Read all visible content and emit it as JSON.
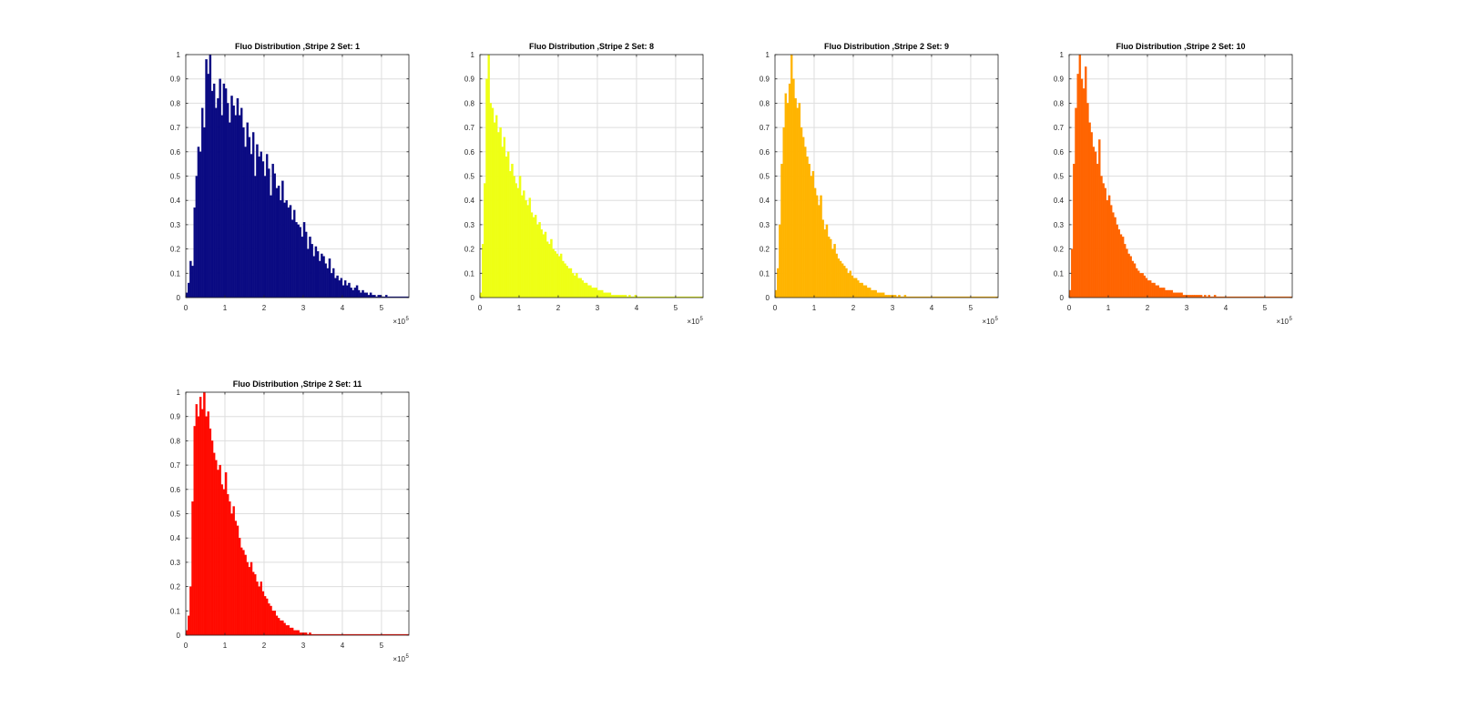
{
  "figure": {
    "background": "#ffffff",
    "axes_color": "#262626",
    "grid_color": "#dedede"
  },
  "chart_data": [
    {
      "type": "bar",
      "title": "Fluo Distribution ,Stripe 2 Set:  1",
      "color": "#0a0a82",
      "xlim": [
        0,
        570000
      ],
      "ylim": [
        0,
        1
      ],
      "xticks": [
        0,
        1,
        2,
        3,
        4,
        5
      ],
      "yticks": [
        0,
        0.1,
        0.2,
        0.3,
        0.4,
        0.5,
        0.6,
        0.7,
        0.8,
        0.9,
        1
      ],
      "x_exponent": "×10",
      "x_exponent_power": "5",
      "grid": true,
      "bin_width": 5000,
      "values": [
        0.02,
        0.06,
        0.15,
        0.13,
        0.37,
        0.5,
        0.62,
        0.6,
        0.78,
        0.7,
        0.98,
        0.92,
        1.0,
        0.85,
        0.88,
        0.78,
        0.82,
        0.9,
        0.75,
        0.88,
        0.86,
        0.8,
        0.72,
        0.83,
        0.79,
        0.75,
        0.82,
        0.75,
        0.78,
        0.7,
        0.62,
        0.72,
        0.66,
        0.59,
        0.68,
        0.5,
        0.63,
        0.58,
        0.6,
        0.56,
        0.5,
        0.59,
        0.53,
        0.42,
        0.55,
        0.51,
        0.45,
        0.46,
        0.4,
        0.48,
        0.39,
        0.4,
        0.37,
        0.38,
        0.32,
        0.36,
        0.31,
        0.3,
        0.29,
        0.25,
        0.31,
        0.27,
        0.2,
        0.25,
        0.22,
        0.17,
        0.21,
        0.19,
        0.15,
        0.18,
        0.17,
        0.14,
        0.12,
        0.16,
        0.1,
        0.12,
        0.08,
        0.09,
        0.07,
        0.08,
        0.05,
        0.07,
        0.05,
        0.06,
        0.04,
        0.03,
        0.04,
        0.05,
        0.03,
        0.02,
        0.03,
        0.02,
        0.02,
        0.01,
        0.02,
        0.01,
        0.01,
        0.0,
        0.01,
        0.01,
        0.0,
        0.0,
        0.01,
        0.0,
        0.0,
        0.0,
        0.0,
        0.0,
        0.0,
        0.0,
        0.0,
        0.0,
        0.0,
        0.0
      ]
    },
    {
      "type": "bar",
      "title": "Fluo Distribution ,Stripe 2 Set:  8",
      "color": "#eeff14",
      "xlim": [
        0,
        570000
      ],
      "ylim": [
        0,
        1
      ],
      "xticks": [
        0,
        1,
        2,
        3,
        4,
        5
      ],
      "yticks": [
        0,
        0.1,
        0.2,
        0.3,
        0.4,
        0.5,
        0.6,
        0.7,
        0.8,
        0.9,
        1
      ],
      "x_exponent": "×10",
      "x_exponent_power": "5",
      "grid": true,
      "bin_width": 5000,
      "values": [
        0.02,
        0.22,
        0.47,
        0.9,
        1.0,
        0.8,
        0.78,
        0.72,
        0.75,
        0.68,
        0.7,
        0.62,
        0.66,
        0.58,
        0.6,
        0.52,
        0.55,
        0.5,
        0.47,
        0.45,
        0.5,
        0.42,
        0.44,
        0.4,
        0.38,
        0.41,
        0.35,
        0.33,
        0.34,
        0.3,
        0.31,
        0.28,
        0.26,
        0.27,
        0.23,
        0.22,
        0.24,
        0.2,
        0.19,
        0.18,
        0.17,
        0.18,
        0.15,
        0.14,
        0.13,
        0.12,
        0.12,
        0.1,
        0.09,
        0.1,
        0.08,
        0.08,
        0.07,
        0.06,
        0.06,
        0.05,
        0.05,
        0.04,
        0.04,
        0.04,
        0.03,
        0.03,
        0.03,
        0.02,
        0.02,
        0.02,
        0.02,
        0.01,
        0.01,
        0.01,
        0.01,
        0.01,
        0.01,
        0.01,
        0.01,
        0.0,
        0.01,
        0.0,
        0.0,
        0.01,
        0.0,
        0.0,
        0.0,
        0.0,
        0.0,
        0.0,
        0.0,
        0.0,
        0.0,
        0.0,
        0.0,
        0.0,
        0.0,
        0.0,
        0.0,
        0.0,
        0.0,
        0.0,
        0.0,
        0.0,
        0.0,
        0.0,
        0.0,
        0.0,
        0.0,
        0.0,
        0.0,
        0.0,
        0.0,
        0.0,
        0.0,
        0.0,
        0.0,
        0.0
      ]
    },
    {
      "type": "bar",
      "title": "Fluo Distribution ,Stripe 2 Set:  9",
      "color": "#ffb400",
      "xlim": [
        0,
        570000
      ],
      "ylim": [
        0,
        1
      ],
      "xticks": [
        0,
        1,
        2,
        3,
        4,
        5
      ],
      "yticks": [
        0,
        0.1,
        0.2,
        0.3,
        0.4,
        0.5,
        0.6,
        0.7,
        0.8,
        0.9,
        1
      ],
      "x_exponent": "×10",
      "x_exponent_power": "5",
      "grid": true,
      "bin_width": 5000,
      "values": [
        0.03,
        0.12,
        0.3,
        0.55,
        0.7,
        0.84,
        0.8,
        0.88,
        1.0,
        0.9,
        0.82,
        0.78,
        0.8,
        0.7,
        0.66,
        0.62,
        0.58,
        0.55,
        0.5,
        0.52,
        0.45,
        0.42,
        0.38,
        0.42,
        0.32,
        0.28,
        0.3,
        0.25,
        0.24,
        0.2,
        0.22,
        0.18,
        0.16,
        0.15,
        0.14,
        0.13,
        0.12,
        0.1,
        0.11,
        0.09,
        0.08,
        0.08,
        0.07,
        0.06,
        0.06,
        0.05,
        0.05,
        0.04,
        0.04,
        0.03,
        0.03,
        0.03,
        0.02,
        0.02,
        0.02,
        0.02,
        0.01,
        0.01,
        0.01,
        0.01,
        0.01,
        0.01,
        0.0,
        0.01,
        0.0,
        0.0,
        0.01,
        0.0,
        0.0,
        0.0,
        0.0,
        0.0,
        0.0,
        0.0,
        0.0,
        0.0,
        0.0,
        0.0,
        0.0,
        0.0,
        0.0,
        0.0,
        0.0,
        0.0,
        0.0,
        0.0,
        0.0,
        0.0,
        0.0,
        0.0,
        0.0,
        0.0,
        0.0,
        0.0,
        0.0,
        0.0,
        0.0,
        0.0,
        0.0,
        0.0,
        0.0,
        0.0,
        0.0,
        0.0,
        0.0,
        0.0,
        0.0,
        0.0,
        0.0,
        0.0,
        0.0,
        0.0,
        0.0,
        0.0
      ]
    },
    {
      "type": "bar",
      "title": "Fluo Distribution ,Stripe 2 Set:  10",
      "color": "#ff6400",
      "xlim": [
        0,
        570000
      ],
      "ylim": [
        0,
        1
      ],
      "xticks": [
        0,
        1,
        2,
        3,
        4,
        5
      ],
      "yticks": [
        0,
        0.1,
        0.2,
        0.3,
        0.4,
        0.5,
        0.6,
        0.7,
        0.8,
        0.9,
        1
      ],
      "x_exponent": "×10",
      "x_exponent_power": "5",
      "grid": true,
      "bin_width": 5000,
      "values": [
        0.03,
        0.2,
        0.55,
        0.78,
        0.92,
        1.0,
        0.9,
        0.86,
        0.95,
        0.8,
        0.72,
        0.68,
        0.62,
        0.6,
        0.55,
        0.65,
        0.5,
        0.47,
        0.45,
        0.4,
        0.42,
        0.38,
        0.35,
        0.33,
        0.3,
        0.28,
        0.26,
        0.25,
        0.22,
        0.2,
        0.18,
        0.17,
        0.15,
        0.14,
        0.12,
        0.11,
        0.1,
        0.1,
        0.09,
        0.08,
        0.07,
        0.07,
        0.06,
        0.06,
        0.05,
        0.05,
        0.04,
        0.04,
        0.04,
        0.03,
        0.03,
        0.03,
        0.03,
        0.02,
        0.02,
        0.02,
        0.02,
        0.02,
        0.01,
        0.01,
        0.01,
        0.01,
        0.01,
        0.01,
        0.01,
        0.01,
        0.01,
        0.01,
        0.0,
        0.01,
        0.0,
        0.01,
        0.0,
        0.0,
        0.01,
        0.0,
        0.0,
        0.0,
        0.0,
        0.0,
        0.0,
        0.0,
        0.0,
        0.0,
        0.0,
        0.0,
        0.0,
        0.0,
        0.0,
        0.0,
        0.0,
        0.0,
        0.0,
        0.0,
        0.0,
        0.0,
        0.0,
        0.0,
        0.0,
        0.0,
        0.0,
        0.0,
        0.0,
        0.0,
        0.0,
        0.0,
        0.0,
        0.0,
        0.0,
        0.0,
        0.0,
        0.0,
        0.0,
        0.0
      ]
    },
    {
      "type": "bar",
      "title": "Fluo Distribution ,Stripe 2 Set:  11",
      "color": "#ff0a00",
      "xlim": [
        0,
        570000
      ],
      "ylim": [
        0,
        1
      ],
      "xticks": [
        0,
        1,
        2,
        3,
        4,
        5
      ],
      "yticks": [
        0,
        0.1,
        0.2,
        0.3,
        0.4,
        0.5,
        0.6,
        0.7,
        0.8,
        0.9,
        1
      ],
      "x_exponent": "×10",
      "x_exponent_power": "5",
      "grid": true,
      "bin_width": 5000,
      "values": [
        0.02,
        0.08,
        0.2,
        0.55,
        0.86,
        0.95,
        0.9,
        0.98,
        0.93,
        1.0,
        0.9,
        0.92,
        0.85,
        0.8,
        0.75,
        0.72,
        0.68,
        0.7,
        0.62,
        0.6,
        0.67,
        0.58,
        0.55,
        0.5,
        0.53,
        0.47,
        0.45,
        0.4,
        0.36,
        0.35,
        0.33,
        0.3,
        0.28,
        0.3,
        0.26,
        0.25,
        0.22,
        0.2,
        0.22,
        0.18,
        0.16,
        0.15,
        0.13,
        0.12,
        0.1,
        0.1,
        0.08,
        0.07,
        0.06,
        0.06,
        0.05,
        0.04,
        0.04,
        0.03,
        0.03,
        0.02,
        0.02,
        0.02,
        0.01,
        0.01,
        0.01,
        0.01,
        0.0,
        0.01,
        0.0,
        0.0,
        0.0,
        0.0,
        0.0,
        0.0,
        0.0,
        0.0,
        0.0,
        0.0,
        0.0,
        0.0,
        0.0,
        0.0,
        0.0,
        0.0,
        0.0,
        0.0,
        0.0,
        0.0,
        0.0,
        0.0,
        0.0,
        0.0,
        0.0,
        0.0,
        0.0,
        0.0,
        0.0,
        0.0,
        0.0,
        0.0,
        0.0,
        0.0,
        0.0,
        0.0,
        0.0,
        0.0,
        0.0,
        0.0,
        0.0,
        0.0,
        0.0,
        0.0,
        0.0,
        0.0,
        0.0,
        0.0,
        0.0,
        0.0
      ]
    }
  ]
}
